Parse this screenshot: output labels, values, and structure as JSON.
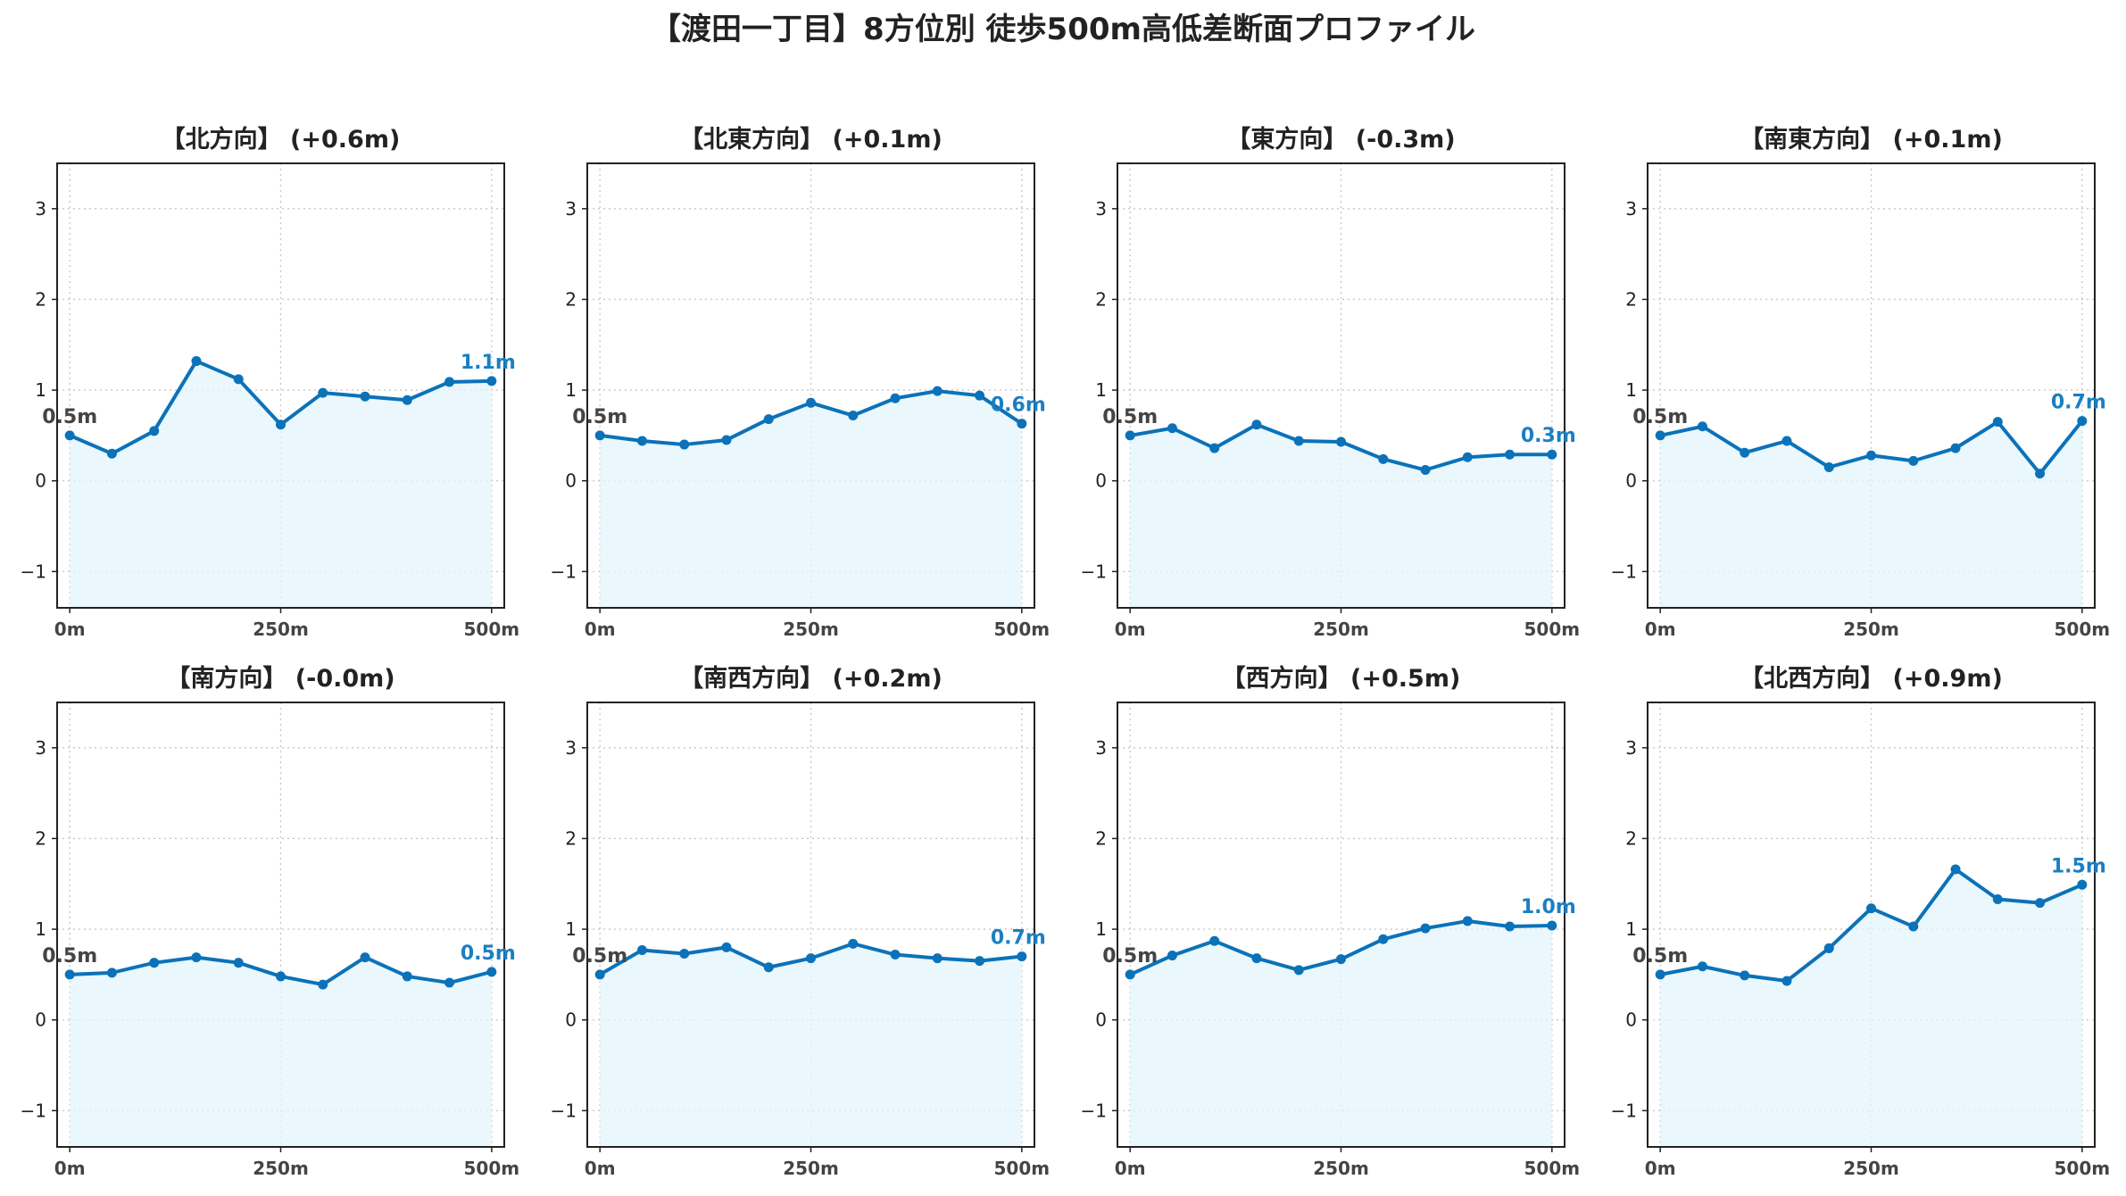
{
  "figure_title": "【渡田一丁目】8方位別 徒歩500m高低差断面プロファイル",
  "colors": {
    "line": "#0b72b9",
    "fill": "#e3f4fb",
    "end_label": "#1a7fc2",
    "start_label": "#444444"
  },
  "chart_data": [
    {
      "type": "area",
      "title": "【北方向】 (+0.6m)",
      "x": [
        0,
        50,
        100,
        150,
        200,
        250,
        300,
        350,
        400,
        450,
        500
      ],
      "y": [
        0.5,
        0.3,
        0.55,
        1.32,
        1.12,
        0.62,
        0.97,
        0.93,
        0.89,
        1.09,
        1.1
      ],
      "start_label": "0.5m",
      "end_label": "1.1m",
      "xticks": [
        "0m",
        "250m",
        "500m"
      ],
      "yticks": [
        "−1",
        "0",
        "1",
        "2",
        "3"
      ],
      "ylim": [
        -1.4,
        3.5
      ],
      "xlim": [
        -15,
        515
      ],
      "grid": true
    },
    {
      "type": "area",
      "title": "【北東方向】 (+0.1m)",
      "x": [
        0,
        50,
        100,
        150,
        200,
        250,
        300,
        350,
        400,
        450,
        500
      ],
      "y": [
        0.5,
        0.44,
        0.4,
        0.45,
        0.68,
        0.86,
        0.72,
        0.91,
        0.99,
        0.94,
        0.63
      ],
      "start_label": "0.5m",
      "end_label": "0.6m",
      "xticks": [
        "0m",
        "250m",
        "500m"
      ],
      "yticks": [
        "−1",
        "0",
        "1",
        "2",
        "3"
      ],
      "ylim": [
        -1.4,
        3.5
      ],
      "xlim": [
        -15,
        515
      ],
      "grid": true
    },
    {
      "type": "area",
      "title": "【東方向】 (-0.3m)",
      "x": [
        0,
        50,
        100,
        150,
        200,
        250,
        300,
        350,
        400,
        450,
        500
      ],
      "y": [
        0.5,
        0.58,
        0.36,
        0.62,
        0.44,
        0.43,
        0.24,
        0.12,
        0.26,
        0.29,
        0.29
      ],
      "start_label": "0.5m",
      "end_label": "0.3m",
      "xticks": [
        "0m",
        "250m",
        "500m"
      ],
      "yticks": [
        "−1",
        "0",
        "1",
        "2",
        "3"
      ],
      "ylim": [
        -1.4,
        3.5
      ],
      "xlim": [
        -15,
        515
      ],
      "grid": true
    },
    {
      "type": "area",
      "title": "【南東方向】 (+0.1m)",
      "x": [
        0,
        50,
        100,
        150,
        200,
        250,
        300,
        350,
        400,
        450,
        500
      ],
      "y": [
        0.5,
        0.6,
        0.31,
        0.44,
        0.15,
        0.28,
        0.22,
        0.36,
        0.65,
        0.08,
        0.66
      ],
      "start_label": "0.5m",
      "end_label": "0.7m",
      "xticks": [
        "0m",
        "250m",
        "500m"
      ],
      "yticks": [
        "−1",
        "0",
        "1",
        "2",
        "3"
      ],
      "ylim": [
        -1.4,
        3.5
      ],
      "xlim": [
        -15,
        515
      ],
      "grid": true
    },
    {
      "type": "area",
      "title": "【南方向】 (-0.0m)",
      "x": [
        0,
        50,
        100,
        150,
        200,
        250,
        300,
        350,
        400,
        450,
        500
      ],
      "y": [
        0.5,
        0.52,
        0.63,
        0.69,
        0.63,
        0.48,
        0.39,
        0.69,
        0.48,
        0.41,
        0.53
      ],
      "start_label": "0.5m",
      "end_label": "0.5m",
      "xticks": [
        "0m",
        "250m",
        "500m"
      ],
      "yticks": [
        "−1",
        "0",
        "1",
        "2",
        "3"
      ],
      "ylim": [
        -1.4,
        3.5
      ],
      "xlim": [
        -15,
        515
      ],
      "grid": true
    },
    {
      "type": "area",
      "title": "【南西方向】 (+0.2m)",
      "x": [
        0,
        50,
        100,
        150,
        200,
        250,
        300,
        350,
        400,
        450,
        500
      ],
      "y": [
        0.5,
        0.77,
        0.73,
        0.8,
        0.58,
        0.68,
        0.84,
        0.72,
        0.68,
        0.65,
        0.7
      ],
      "start_label": "0.5m",
      "end_label": "0.7m",
      "xticks": [
        "0m",
        "250m",
        "500m"
      ],
      "yticks": [
        "−1",
        "0",
        "1",
        "2",
        "3"
      ],
      "ylim": [
        -1.4,
        3.5
      ],
      "xlim": [
        -15,
        515
      ],
      "grid": true
    },
    {
      "type": "area",
      "title": "【西方向】 (+0.5m)",
      "x": [
        0,
        50,
        100,
        150,
        200,
        250,
        300,
        350,
        400,
        450,
        500
      ],
      "y": [
        0.5,
        0.71,
        0.87,
        0.68,
        0.55,
        0.67,
        0.89,
        1.01,
        1.09,
        1.03,
        1.04
      ],
      "start_label": "0.5m",
      "end_label": "1.0m",
      "xticks": [
        "0m",
        "250m",
        "500m"
      ],
      "yticks": [
        "−1",
        "0",
        "1",
        "2",
        "3"
      ],
      "ylim": [
        -1.4,
        3.5
      ],
      "xlim": [
        -15,
        515
      ],
      "grid": true
    },
    {
      "type": "area",
      "title": "【北西方向】 (+0.9m)",
      "x": [
        0,
        50,
        100,
        150,
        200,
        250,
        300,
        350,
        400,
        450,
        500
      ],
      "y": [
        0.5,
        0.59,
        0.49,
        0.43,
        0.79,
        1.23,
        1.03,
        1.66,
        1.33,
        1.29,
        1.49
      ],
      "start_label": "0.5m",
      "end_label": "1.5m",
      "xticks": [
        "0m",
        "250m",
        "500m"
      ],
      "yticks": [
        "−1",
        "0",
        "1",
        "2",
        "3"
      ],
      "ylim": [
        -1.4,
        3.5
      ],
      "xlim": [
        -15,
        515
      ],
      "grid": true
    }
  ]
}
